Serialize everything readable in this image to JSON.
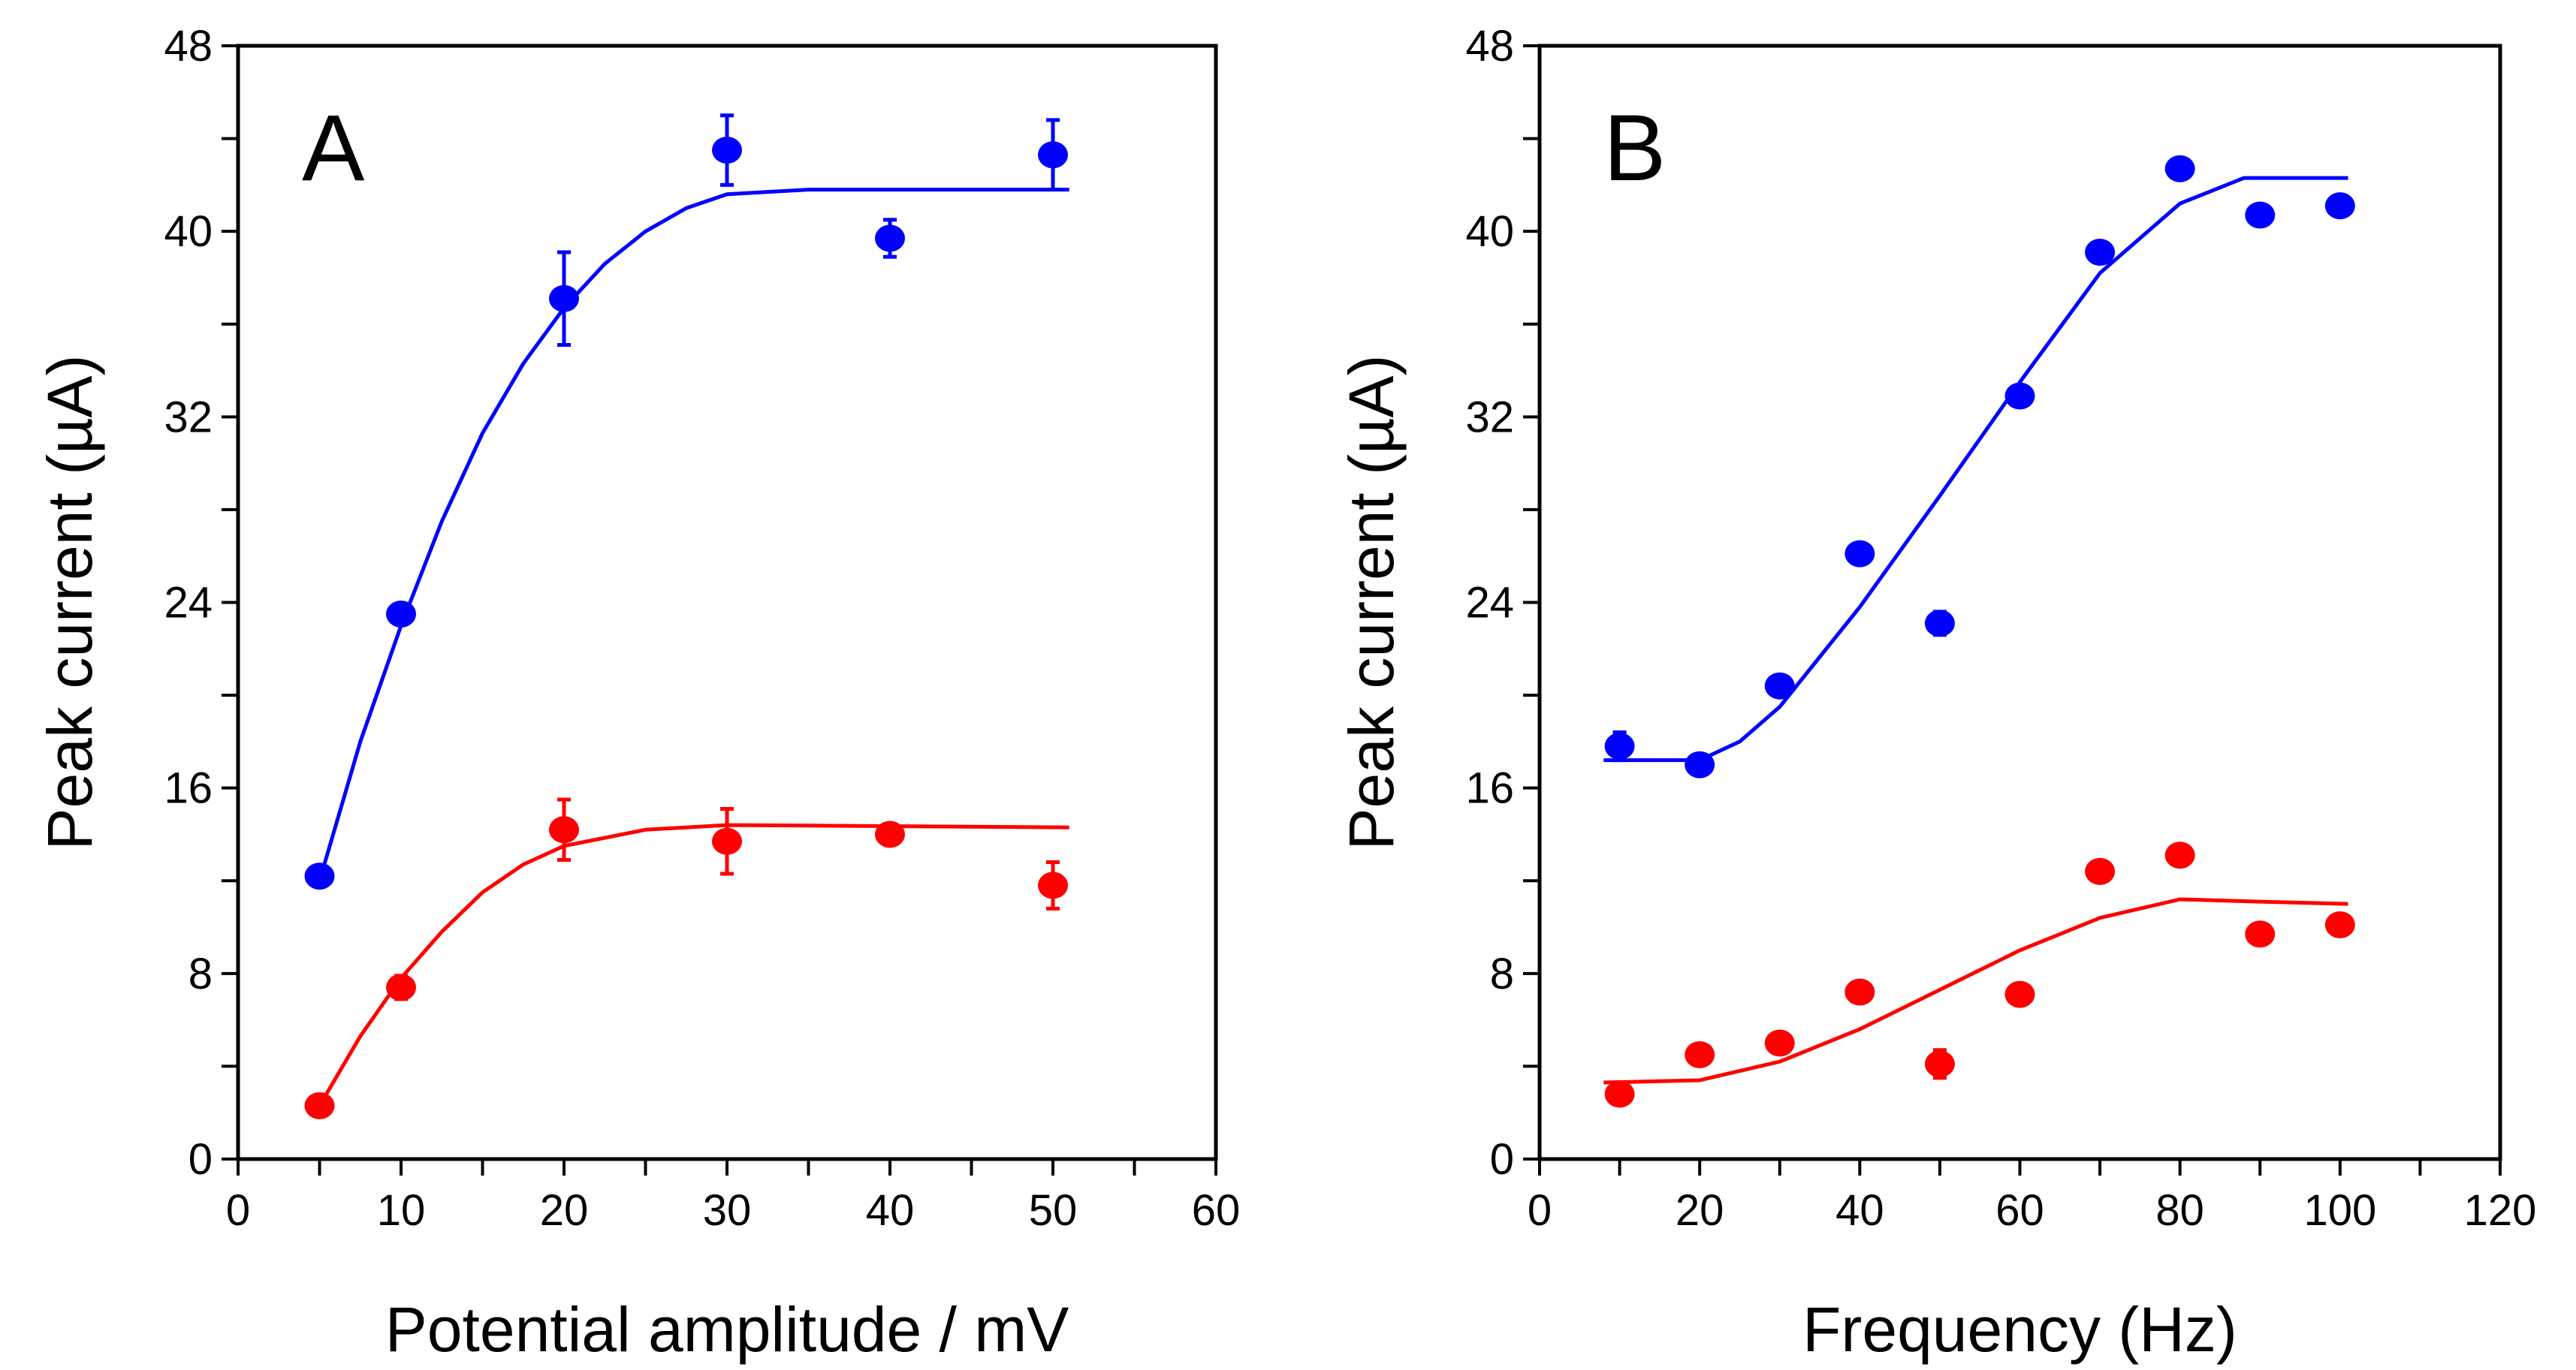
{
  "chart_data": [
    {
      "type": "scatter",
      "panel_label": "A",
      "xlabel": "Potential amplitude / mV",
      "ylabel": "Peak current (µA)",
      "xlim": [
        0,
        60
      ],
      "ylim": [
        0,
        48
      ],
      "xticks": [
        0,
        10,
        20,
        30,
        40,
        50,
        60
      ],
      "yticks": [
        0,
        8,
        16,
        24,
        32,
        40,
        48
      ],
      "grid": false,
      "series": [
        {
          "name": "blue",
          "color": "#0000ff",
          "x": [
            5,
            10,
            20,
            30,
            40,
            50
          ],
          "y": [
            12.2,
            23.5,
            37.1,
            43.5,
            39.7,
            43.3
          ],
          "err": [
            0.4,
            0.4,
            2.0,
            1.5,
            0.8,
            1.5
          ],
          "fit_x": [
            5,
            7.5,
            10,
            12.5,
            15,
            17.5,
            20,
            22.5,
            25,
            27.5,
            30,
            35,
            51
          ],
          "fit_y": [
            12,
            18,
            23,
            27.5,
            31.3,
            34.3,
            36.7,
            38.6,
            40,
            41,
            41.6,
            41.8,
            41.8
          ]
        },
        {
          "name": "red",
          "color": "#ff0000",
          "x": [
            5,
            10,
            20,
            30,
            40,
            50
          ],
          "y": [
            2.3,
            7.4,
            14.2,
            13.7,
            14.0,
            11.8
          ],
          "err": [
            0.3,
            0.5,
            1.3,
            1.4,
            0.3,
            1.0
          ],
          "fit_x": [
            5,
            7.5,
            10,
            12.5,
            15,
            17.5,
            20,
            25,
            30,
            51
          ],
          "fit_y": [
            2.3,
            5.3,
            7.8,
            9.8,
            11.5,
            12.7,
            13.5,
            14.2,
            14.4,
            14.3
          ]
        }
      ]
    },
    {
      "type": "scatter",
      "panel_label": "B",
      "xlabel": "Frequency (Hz)",
      "ylabel": "Peak current (µA)",
      "xlim": [
        0,
        120
      ],
      "ylim": [
        0,
        48
      ],
      "xticks": [
        0,
        20,
        40,
        60,
        80,
        100,
        120
      ],
      "yticks": [
        0,
        8,
        16,
        24,
        32,
        40,
        48
      ],
      "grid": false,
      "series": [
        {
          "name": "blue",
          "color": "#0000ff",
          "x": [
            10,
            20,
            30,
            40,
            50,
            60,
            70,
            80,
            90,
            100
          ],
          "y": [
            17.8,
            17.0,
            20.4,
            26.1,
            23.1,
            32.9,
            39.1,
            42.7,
            40.7,
            41.1
          ],
          "err": [
            0.6,
            0.3,
            0.3,
            0.3,
            0.5,
            0.3,
            0.3,
            0.3,
            0.3,
            0.3
          ],
          "fit_x": [
            8,
            20,
            25,
            30,
            40,
            50,
            60,
            70,
            80,
            88,
            101
          ],
          "fit_y": [
            17.2,
            17.2,
            18,
            19.5,
            23.8,
            28.6,
            33.5,
            38.2,
            41.2,
            42.3,
            42.3
          ]
        },
        {
          "name": "red",
          "color": "#ff0000",
          "x": [
            10,
            20,
            30,
            40,
            50,
            60,
            70,
            80,
            90,
            100
          ],
          "y": [
            2.8,
            4.5,
            5.0,
            7.2,
            4.1,
            7.1,
            12.4,
            13.1,
            9.7,
            10.1
          ],
          "err": [
            0.3,
            0.3,
            0.3,
            0.3,
            0.6,
            0.3,
            0.3,
            0.3,
            0.3,
            0.3
          ],
          "fit_x": [
            8,
            20,
            30,
            40,
            50,
            60,
            70,
            80,
            90,
            101
          ],
          "fit_y": [
            3.3,
            3.4,
            4.2,
            5.6,
            7.3,
            9.0,
            10.4,
            11.2,
            11.1,
            11.0
          ]
        }
      ]
    }
  ]
}
